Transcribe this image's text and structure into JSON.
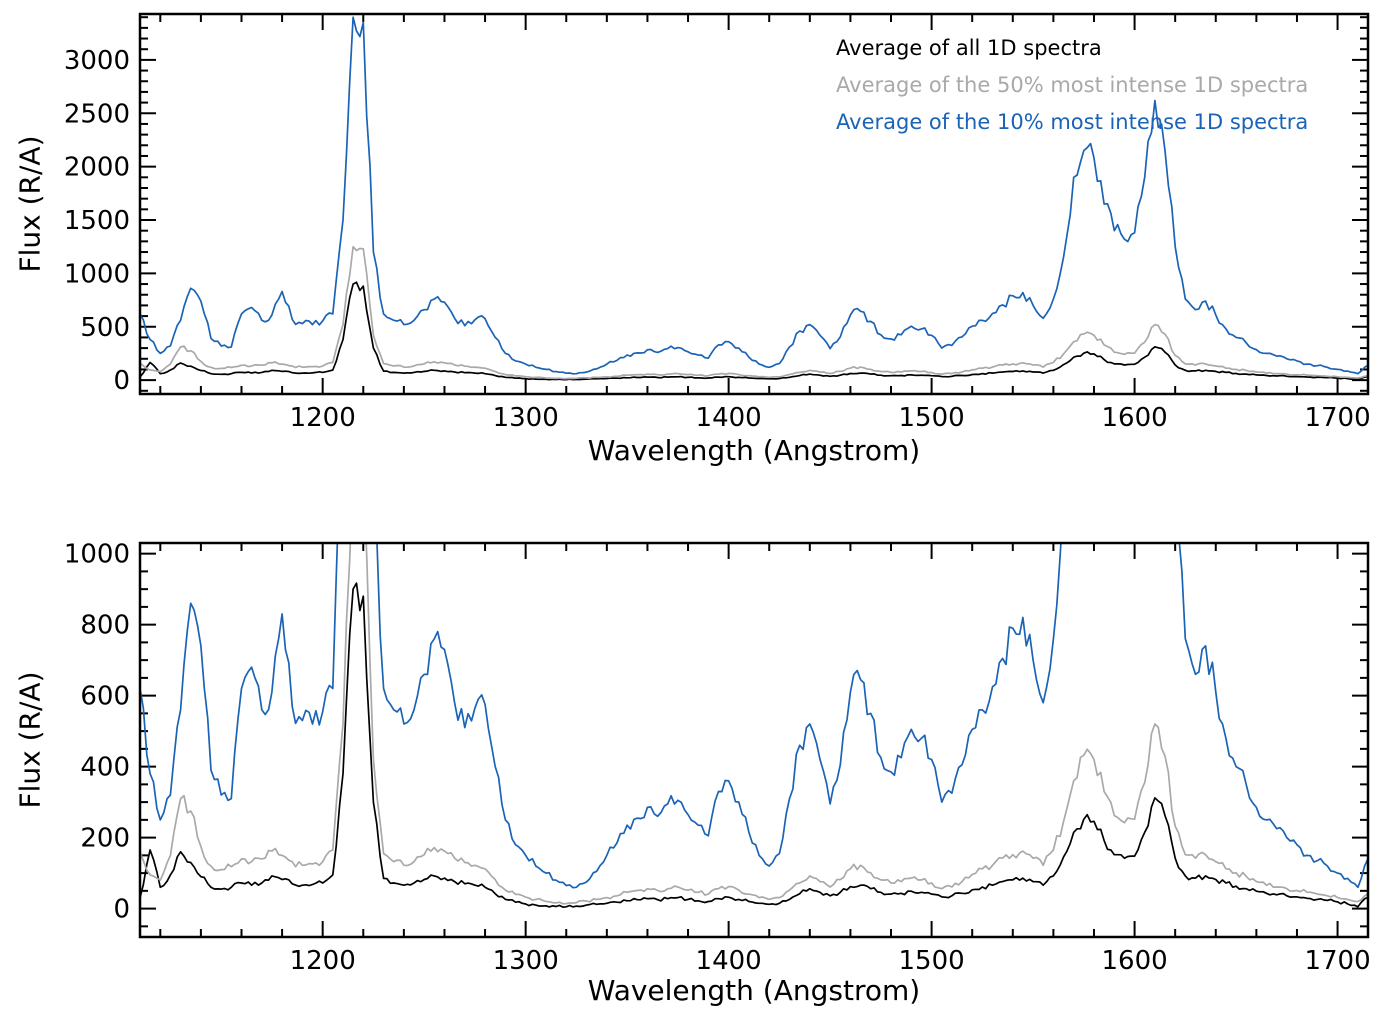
{
  "chart_data": {
    "type": "line",
    "title": "",
    "xlabel": "Wavelength (Angstrom)",
    "ylabel": "Flux (R/A)",
    "xlim": [
      1110,
      1715
    ],
    "xticks": [
      1200,
      1300,
      1400,
      1500,
      1600,
      1700
    ],
    "x_minor_step": 20,
    "x_start": 1110,
    "x_step": 5,
    "x_end": 1715,
    "grid": "off",
    "legend_position": "top-right-inside-top-panel",
    "panels": [
      {
        "name": "top",
        "ylim": [
          -130,
          3430
        ],
        "yticks": [
          0,
          500,
          1000,
          1500,
          2000,
          2500,
          3000
        ],
        "y_minor_step": 100
      },
      {
        "name": "bottom",
        "ylim": [
          -80,
          1030
        ],
        "yticks": [
          0,
          200,
          400,
          600,
          800,
          1000
        ],
        "y_minor_step": 50
      }
    ],
    "series": [
      {
        "name": "Average of all 1D spectra",
        "color": "#000000",
        "values": [
          30,
          165,
          60,
          95,
          160,
          130,
          90,
          60,
          55,
          60,
          72,
          66,
          72,
          92,
          82,
          70,
          66,
          68,
          72,
          95,
          380,
          900,
          880,
          300,
          85,
          72,
          66,
          72,
          82,
          92,
          86,
          76,
          70,
          66,
          60,
          42,
          26,
          18,
          13,
          10,
          8,
          6,
          5,
          7,
          10,
          12,
          15,
          18,
          22,
          25,
          28,
          25,
          28,
          31,
          26,
          22,
          20,
          28,
          32,
          26,
          20,
          15,
          12,
          15,
          26,
          42,
          56,
          46,
          36,
          46,
          62,
          66,
          56,
          46,
          41,
          43,
          49,
          46,
          41,
          33,
          36,
          43,
          53,
          61,
          66,
          76,
          81,
          86,
          76,
          66,
          92,
          145,
          215,
          252,
          246,
          192,
          152,
          142,
          148,
          215,
          312,
          262,
          142,
          92,
          86,
          92,
          82,
          72,
          63,
          56,
          49,
          43,
          39,
          36,
          33,
          29,
          26,
          23,
          19,
          13,
          5,
          32
        ]
      },
      {
        "name": "Average of the 50% most intense 1D spectra",
        "color": "#a9a9a9",
        "values": [
          160,
          95,
          80,
          150,
          310,
          275,
          175,
          120,
          110,
          118,
          140,
          132,
          140,
          162,
          150,
          132,
          122,
          126,
          132,
          165,
          520,
          1250,
          1230,
          420,
          155,
          132,
          122,
          132,
          152,
          172,
          162,
          142,
          130,
          122,
          112,
          82,
          52,
          40,
          32,
          26,
          20,
          16,
          14,
          17,
          21,
          26,
          31,
          36,
          46,
          51,
          56,
          51,
          56,
          61,
          52,
          46,
          41,
          56,
          62,
          52,
          41,
          31,
          26,
          31,
          52,
          72,
          92,
          76,
          61,
          82,
          112,
          122,
          101,
          81,
          72,
          76,
          86,
          81,
          72,
          56,
          61,
          76,
          96,
          112,
          122,
          142,
          152,
          162,
          142,
          122,
          165,
          245,
          360,
          432,
          420,
          330,
          262,
          242,
          252,
          355,
          520,
          430,
          232,
          152,
          142,
          152,
          132,
          112,
          101,
          91,
          76,
          66,
          61,
          56,
          51,
          46,
          41,
          36,
          31,
          26,
          20,
          42
        ]
      },
      {
        "name": "Average of the 10% most intense 1D spectra",
        "color": "#1a63b6",
        "values": [
          620,
          380,
          250,
          320,
          560,
          860,
          740,
          390,
          320,
          310,
          620,
          680,
          560,
          610,
          830,
          570,
          530,
          520,
          555,
          620,
          1500,
          3400,
          3350,
          1200,
          620,
          560,
          520,
          560,
          660,
          760,
          730,
          580,
          510,
          565,
          575,
          400,
          250,
          180,
          150,
          120,
          100,
          80,
          65,
          60,
          75,
          105,
          150,
          185,
          235,
          255,
          285,
          260,
          295,
          305,
          265,
          235,
          205,
          330,
          360,
          300,
          215,
          150,
          120,
          155,
          310,
          460,
          520,
          420,
          295,
          405,
          610,
          645,
          550,
          425,
          385,
          425,
          505,
          480,
          420,
          300,
          325,
          405,
          505,
          560,
          625,
          705,
          790,
          820,
          700,
          580,
          760,
          1150,
          1900,
          2150,
          2080,
          1650,
          1400,
          1320,
          1380,
          1900,
          2620,
          2150,
          1250,
          760,
          660,
          740,
          610,
          480,
          400,
          350,
          285,
          250,
          225,
          200,
          180,
          150,
          135,
          120,
          100,
          85,
          60,
          140
        ]
      }
    ]
  }
}
